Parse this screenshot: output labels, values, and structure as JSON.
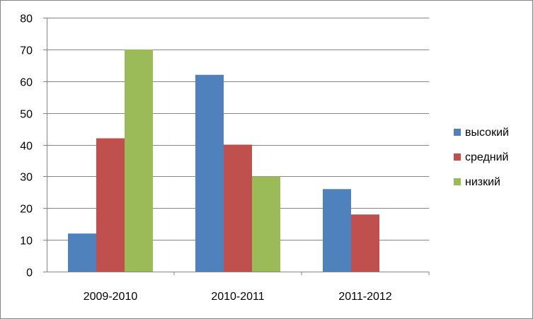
{
  "chart_data": {
    "type": "bar",
    "categories": [
      "2009-2010",
      "2010-2011",
      "2011-2012"
    ],
    "series": [
      {
        "name": "высокий",
        "values": [
          12,
          62,
          26
        ],
        "color": "#4f81bd"
      },
      {
        "name": "средний",
        "values": [
          42,
          40,
          18
        ],
        "color": "#c0504d"
      },
      {
        "name": "низкий",
        "values": [
          70,
          30,
          0
        ],
        "color": "#9bbb59"
      }
    ],
    "title": "",
    "xlabel": "",
    "ylabel": "",
    "ylim": [
      0,
      80
    ],
    "yticks": [
      0,
      10,
      20,
      30,
      40,
      50,
      60,
      70,
      80
    ],
    "grid": true,
    "legend_position": "right",
    "gridline_color": "#868686",
    "axis_color": "#868686"
  }
}
